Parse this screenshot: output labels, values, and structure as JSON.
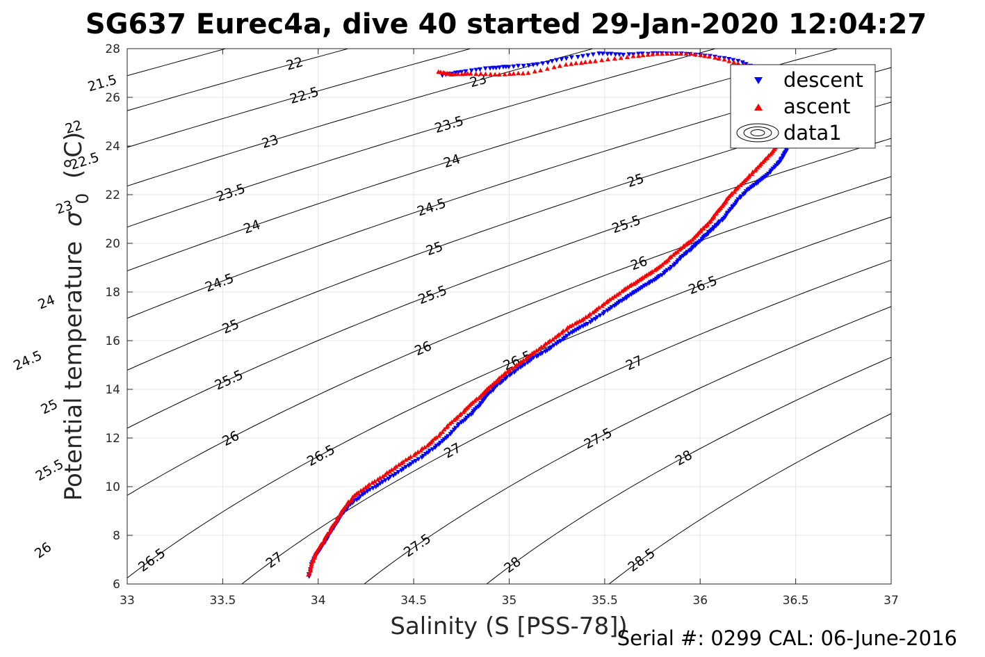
{
  "chart_data": {
    "type": "scatter",
    "title": "SG637 Eurec4a, dive 40 started 29-Jan-2020 12:04:27",
    "xlabel": "Salinity (S [PSS-78])",
    "ylabel": "Potential temperature",
    "ylabel_sigma": "σ",
    "ylabel_sub": "0",
    "ylabel_unit": "(°C)",
    "xlim": [
      33,
      37
    ],
    "ylim": [
      6,
      28
    ],
    "xticks": [
      "33",
      "33.5",
      "34",
      "34.5",
      "35",
      "35.5",
      "36",
      "36.5",
      "37"
    ],
    "yticks": [
      "6",
      "8",
      "10",
      "12",
      "14",
      "16",
      "18",
      "20",
      "22",
      "24",
      "26",
      "28"
    ],
    "grid": true,
    "legend_position": "top-right",
    "legend": [
      "descent",
      "ascent",
      "data1"
    ],
    "footer": "Serial #: 0299 CAL: 06-June-2016",
    "colors": {
      "descent": "#0000ff",
      "ascent": "#ff0000",
      "contour": "#000000",
      "grid": "#e5e5e5"
    },
    "contour_levels": [
      21.5,
      22,
      22.5,
      23,
      23.5,
      24,
      24.5,
      25,
      25.5,
      26,
      26.5,
      27,
      27.5,
      28,
      28.5
    ],
    "contour_labels": [
      {
        "text": "21.5",
        "s": 33.25,
        "t": 26.6
      },
      {
        "text": "22",
        "s": 33.95,
        "t": 27.4
      },
      {
        "text": "22",
        "s": 33.14,
        "t": 24.8
      },
      {
        "text": "22.5",
        "s": 33.35,
        "t": 23.4
      },
      {
        "text": "22.5",
        "s": 34.35,
        "t": 26.1
      },
      {
        "text": "23",
        "s": 35.27,
        "t": 26.7
      },
      {
        "text": "23",
        "s": 33.19,
        "t": 21.5
      },
      {
        "text": "23",
        "s": 34.23,
        "t": 24.2
      },
      {
        "text": "23.5",
        "s": 34.13,
        "t": 22.1
      },
      {
        "text": "23.5",
        "s": 35.17,
        "t": 24.9
      },
      {
        "text": "24",
        "s": 34.24,
        "t": 20.7
      },
      {
        "text": "24",
        "s": 35.27,
        "t": 23.4
      },
      {
        "text": "24",
        "s": 33.22,
        "t": 17.6
      },
      {
        "text": "24.5",
        "s": 33.26,
        "t": 15.2
      },
      {
        "text": "24.5",
        "s": 34.28,
        "t": 18.4
      },
      {
        "text": "24.5",
        "s": 35.3,
        "t": 21.5
      },
      {
        "text": "25",
        "s": 34.23,
        "t": 16.6
      },
      {
        "text": "25",
        "s": 33.23,
        "t": 13.3
      },
      {
        "text": "25",
        "s": 35.24,
        "t": 19.8
      },
      {
        "text": "25",
        "s": 36.26,
        "t": 22.6
      },
      {
        "text": "25.5",
        "s": 33.27,
        "t": 10.7
      },
      {
        "text": "25.5",
        "s": 34.25,
        "t": 14.4
      },
      {
        "text": "25.5",
        "s": 35.24,
        "t": 17.9
      },
      {
        "text": "25.5",
        "s": 36.26,
        "t": 20.8
      },
      {
        "text": "26",
        "s": 33.25,
        "t": 7.4
      },
      {
        "text": "26",
        "s": 34.19,
        "t": 12.0
      },
      {
        "text": "26",
        "s": 35.17,
        "t": 15.7
      },
      {
        "text": "26",
        "s": 36.19,
        "t": 19.2
      },
      {
        "text": "26.5",
        "s": 33.9,
        "t": 7.0
      },
      {
        "text": "26.5",
        "s": 34.75,
        "t": 11.3
      },
      {
        "text": "26.5",
        "s": 35.73,
        "t": 15.2
      },
      {
        "text": "26.5",
        "s": 36.72,
        "t": 18.3
      },
      {
        "text": "27",
        "s": 34.48,
        "t": 7.0
      },
      {
        "text": "27",
        "s": 35.41,
        "t": 11.5
      },
      {
        "text": "27",
        "s": 36.39,
        "t": 15.1
      },
      {
        "text": "27.5",
        "s": 35.21,
        "t": 7.6
      },
      {
        "text": "27.5",
        "s": 36.14,
        "t": 12.0
      },
      {
        "text": "28",
        "s": 35.71,
        "t": 6.8
      },
      {
        "text": "28",
        "s": 36.64,
        "t": 11.2
      },
      {
        "text": "28.5",
        "s": 36.45,
        "t": 7.0
      }
    ],
    "descent": [
      [
        33.95,
        6.3
      ],
      [
        33.97,
        6.9
      ],
      [
        34.0,
        7.3
      ],
      [
        34.04,
        7.8
      ],
      [
        34.08,
        8.3
      ],
      [
        34.12,
        8.8
      ],
      [
        34.16,
        9.2
      ],
      [
        34.22,
        9.6
      ],
      [
        34.3,
        10.0
      ],
      [
        34.38,
        10.4
      ],
      [
        34.46,
        10.8
      ],
      [
        34.54,
        11.2
      ],
      [
        34.61,
        11.6
      ],
      [
        34.67,
        12.0
      ],
      [
        34.73,
        12.5
      ],
      [
        34.79,
        12.9
      ],
      [
        34.84,
        13.3
      ],
      [
        34.88,
        13.7
      ],
      [
        34.93,
        14.1
      ],
      [
        34.99,
        14.5
      ],
      [
        35.06,
        14.9
      ],
      [
        35.13,
        15.3
      ],
      [
        35.2,
        15.6
      ],
      [
        35.27,
        16.0
      ],
      [
        35.34,
        16.4
      ],
      [
        35.41,
        16.7
      ],
      [
        35.49,
        17.1
      ],
      [
        35.56,
        17.5
      ],
      [
        35.62,
        17.8
      ],
      [
        35.68,
        18.1
      ],
      [
        35.74,
        18.4
      ],
      [
        35.8,
        18.7
      ],
      [
        35.86,
        19.1
      ],
      [
        35.91,
        19.5
      ],
      [
        35.96,
        19.8
      ],
      [
        36.0,
        20.1
      ],
      [
        36.04,
        20.4
      ],
      [
        36.08,
        20.7
      ],
      [
        36.12,
        21.0
      ],
      [
        36.16,
        21.4
      ],
      [
        36.2,
        21.8
      ],
      [
        36.25,
        22.2
      ],
      [
        36.3,
        22.5
      ],
      [
        36.35,
        22.8
      ],
      [
        36.4,
        23.2
      ],
      [
        36.43,
        23.5
      ],
      [
        36.45,
        23.8
      ],
      [
        36.46,
        24.2
      ],
      [
        36.48,
        24.6
      ],
      [
        36.5,
        25.1
      ],
      [
        36.49,
        25.6
      ],
      [
        36.46,
        26.1
      ],
      [
        36.42,
        26.6
      ],
      [
        36.32,
        27.1
      ],
      [
        36.2,
        27.5
      ],
      [
        36.05,
        27.7
      ],
      [
        35.9,
        27.8
      ],
      [
        35.75,
        27.8
      ],
      [
        35.6,
        27.75
      ],
      [
        35.47,
        27.8
      ],
      [
        35.3,
        27.6
      ],
      [
        35.15,
        27.35
      ],
      [
        35.0,
        27.25
      ],
      [
        34.9,
        27.2
      ],
      [
        34.75,
        27.05
      ],
      [
        34.65,
        26.9
      ]
    ],
    "ascent": [
      [
        33.95,
        6.4
      ],
      [
        33.97,
        6.9
      ],
      [
        33.99,
        7.3
      ],
      [
        34.03,
        7.8
      ],
      [
        34.07,
        8.3
      ],
      [
        34.11,
        8.8
      ],
      [
        34.15,
        9.3
      ],
      [
        34.2,
        9.7
      ],
      [
        34.27,
        10.1
      ],
      [
        34.35,
        10.5
      ],
      [
        34.42,
        10.9
      ],
      [
        34.5,
        11.3
      ],
      [
        34.57,
        11.7
      ],
      [
        34.63,
        12.1
      ],
      [
        34.69,
        12.6
      ],
      [
        34.75,
        13.0
      ],
      [
        34.8,
        13.4
      ],
      [
        34.86,
        13.8
      ],
      [
        34.91,
        14.2
      ],
      [
        34.97,
        14.6
      ],
      [
        35.04,
        15.0
      ],
      [
        35.11,
        15.4
      ],
      [
        35.18,
        15.8
      ],
      [
        35.25,
        16.2
      ],
      [
        35.32,
        16.6
      ],
      [
        35.39,
        16.9
      ],
      [
        35.46,
        17.3
      ],
      [
        35.53,
        17.7
      ],
      [
        35.6,
        18.1
      ],
      [
        35.66,
        18.4
      ],
      [
        35.72,
        18.7
      ],
      [
        35.78,
        19.0
      ],
      [
        35.84,
        19.4
      ],
      [
        35.9,
        19.8
      ],
      [
        35.95,
        20.1
      ],
      [
        36.0,
        20.5
      ],
      [
        36.04,
        20.8
      ],
      [
        36.08,
        21.2
      ],
      [
        36.12,
        21.6
      ],
      [
        36.16,
        22.0
      ],
      [
        36.21,
        22.4
      ],
      [
        36.26,
        22.8
      ],
      [
        36.31,
        23.2
      ],
      [
        36.36,
        23.6
      ],
      [
        36.4,
        24.0
      ],
      [
        36.44,
        24.4
      ],
      [
        36.47,
        24.9
      ],
      [
        36.49,
        25.4
      ],
      [
        36.48,
        25.9
      ],
      [
        36.45,
        26.4
      ],
      [
        36.38,
        26.9
      ],
      [
        36.25,
        27.3
      ],
      [
        36.1,
        27.6
      ],
      [
        35.95,
        27.8
      ],
      [
        35.8,
        27.8
      ],
      [
        35.65,
        27.7
      ],
      [
        35.45,
        27.5
      ],
      [
        35.3,
        27.35
      ],
      [
        35.1,
        27.0
      ],
      [
        34.95,
        26.95
      ],
      [
        34.8,
        26.98
      ],
      [
        34.7,
        26.95
      ],
      [
        34.63,
        27.05
      ]
    ]
  }
}
